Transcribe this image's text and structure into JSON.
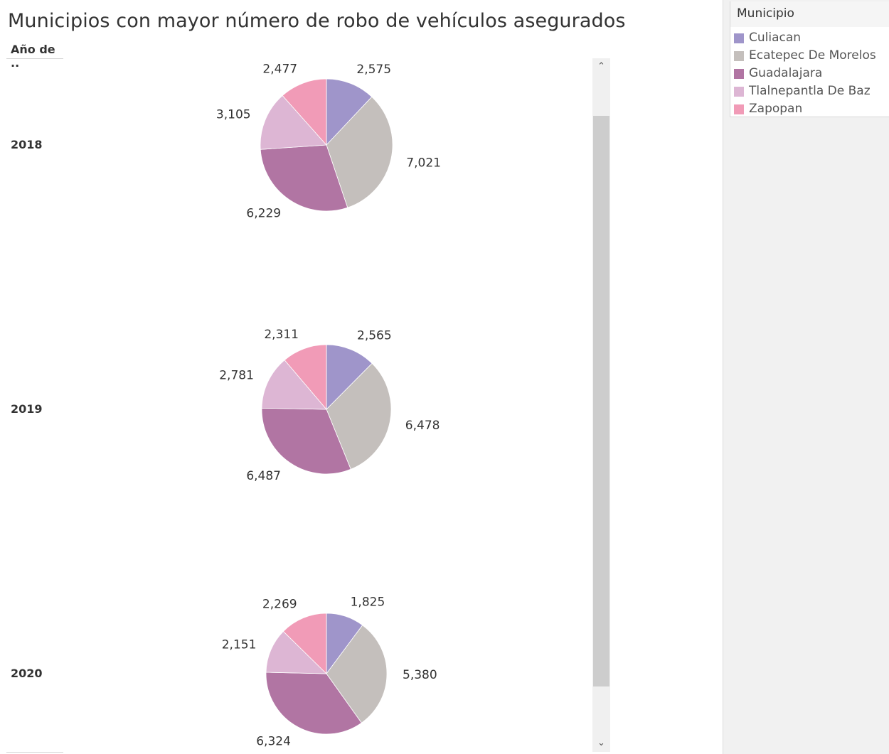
{
  "title": "Municipios con mayor número de robo de vehículos asegurados",
  "row_header": "Año de ..",
  "legend": {
    "title": "Municipio",
    "items": [
      {
        "label": "Culiacan",
        "color": "#9f95ca"
      },
      {
        "label": "Ecatepec De Morelos",
        "color": "#c4bfbc"
      },
      {
        "label": "Guadalajara",
        "color": "#b175a3"
      },
      {
        "label": "Tlalnepantla De Baz",
        "color": "#ddb6d4"
      },
      {
        "label": "Zapopan",
        "color": "#f19bb7"
      }
    ]
  },
  "scrollbar": {
    "up_icon": "chevron-up-icon",
    "down_icon": "chevron-down-icon"
  },
  "chart_data": {
    "type": "pie",
    "title": "Municipios con mayor número de robo de vehículos asegurados",
    "categories": [
      "Culiacan",
      "Ecatepec De Morelos",
      "Guadalajara",
      "Tlalnepantla De Baz",
      "Zapopan"
    ],
    "legend_placement": "top-right",
    "pies": [
      {
        "year": "2018",
        "values": [
          2575,
          7021,
          6229,
          3105,
          2477
        ],
        "labels": [
          "2,575",
          "7,021",
          "6,229",
          "3,105",
          "2,477"
        ]
      },
      {
        "year": "2019",
        "values": [
          2565,
          6478,
          6487,
          2781,
          2311
        ],
        "labels": [
          "2,565",
          "6,478",
          "6,487",
          "2,781",
          "2,311"
        ]
      },
      {
        "year": "2020",
        "values": [
          1825,
          5380,
          6324,
          2151,
          2269
        ],
        "labels": [
          "1,825",
          "5,380",
          "6,324",
          "2,151",
          "2,269"
        ]
      }
    ]
  }
}
